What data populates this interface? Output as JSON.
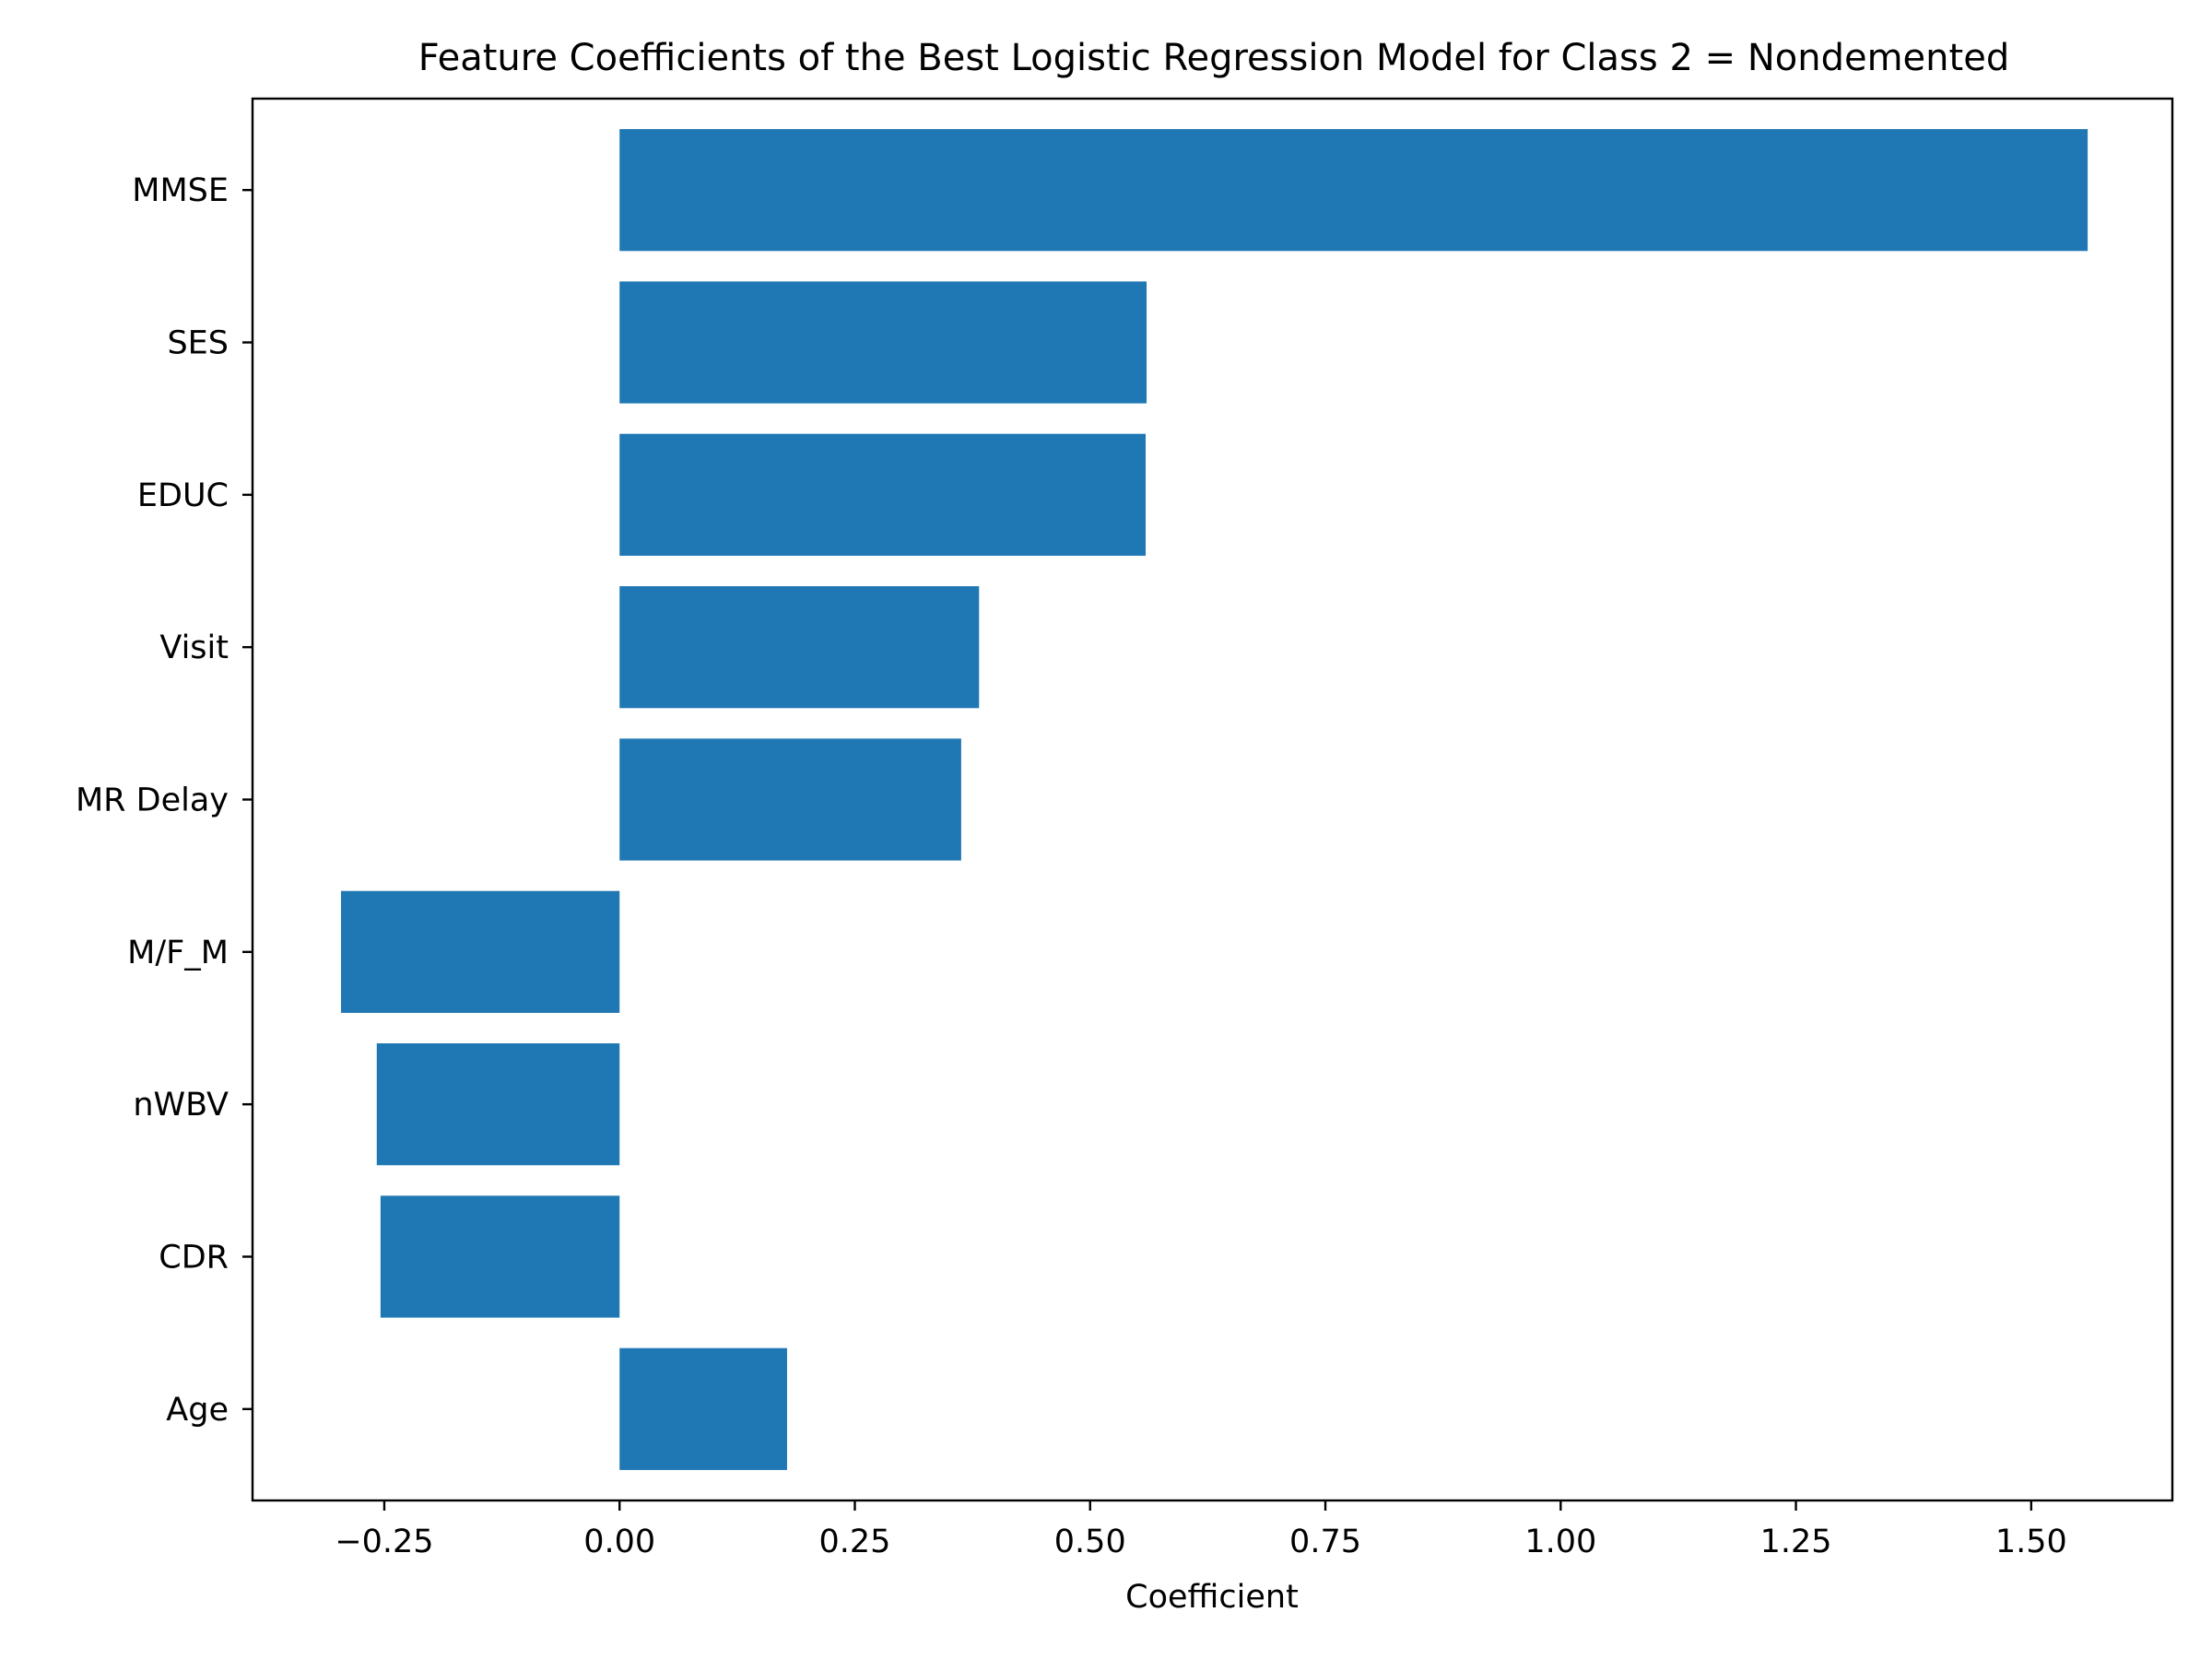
{
  "chart_data": {
    "type": "bar",
    "orientation": "horizontal",
    "title": "Feature Coefficients of the Best Logistic Regression Model for Class 2 = Nondemented",
    "xlabel": "Coefficient",
    "ylabel": "",
    "categories": [
      "MMSE",
      "SES",
      "EDUC",
      "Visit",
      "MR Delay",
      "M/F_M",
      "nWBV",
      "CDR",
      "Age"
    ],
    "values": [
      1.56,
      0.56,
      0.559,
      0.382,
      0.363,
      -0.296,
      -0.258,
      -0.254,
      0.178
    ],
    "xlim": [
      -0.39,
      1.65
    ],
    "xticks": [
      -0.25,
      0.0,
      0.25,
      0.5,
      0.75,
      1.0,
      1.25,
      1.5
    ],
    "xtick_labels": [
      "−0.25",
      "0.00",
      "0.25",
      "0.50",
      "0.75",
      "1.00",
      "1.25",
      "1.50"
    ],
    "bar_color": "#1f77b4",
    "grid": false,
    "legend": "none"
  }
}
